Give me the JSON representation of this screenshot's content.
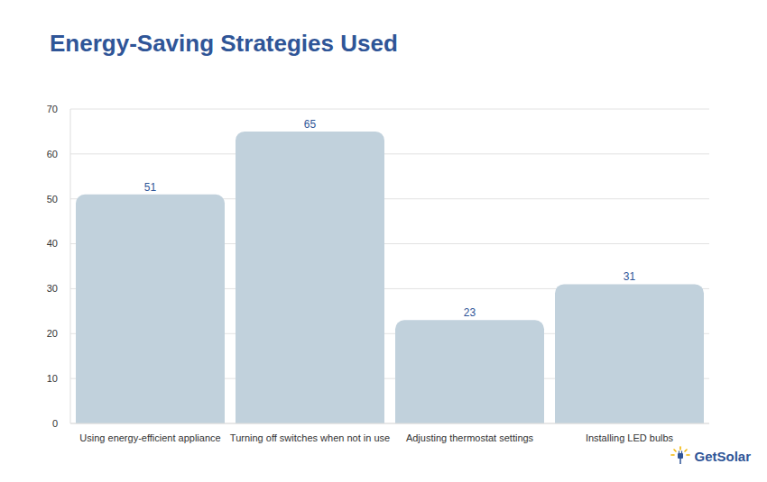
{
  "chart_data": {
    "type": "bar",
    "title": "Energy-Saving Strategies Used",
    "categories": [
      "Using energy-efficient appliance",
      "Turning off switches when not in use",
      "Adjusting thermostat settings",
      "Installing LED bulbs"
    ],
    "values": [
      51,
      65,
      23,
      31
    ],
    "color": "#c1d1dc",
    "ylim": [
      0,
      70
    ],
    "yticks": [
      0,
      10,
      20,
      30,
      40,
      50,
      60,
      70
    ],
    "grid": true,
    "data_labels": true,
    "annotations": [
      "GetSolar"
    ]
  }
}
